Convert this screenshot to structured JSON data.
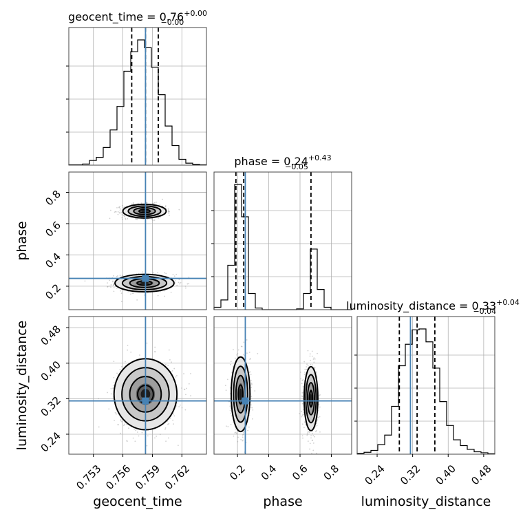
{
  "chart_data": {
    "type": "corner",
    "parameters": [
      {
        "name": "geocent_time",
        "axis_label": "geocent_time",
        "range": [
          0.7505,
          0.7645
        ],
        "ticks": [
          0.753,
          0.756,
          0.759,
          0.762
        ],
        "tick_labels": [
          "0.753",
          "0.756",
          "0.759",
          "0.762"
        ],
        "title_main": "geocent_time = 0.76",
        "title_plus": "+0.00",
        "title_minus": "−0.00",
        "median": 0.7583,
        "quantiles": [
          0.7569,
          0.7583,
          0.7596
        ],
        "truth": 0.7583,
        "hist_edges": [
          0.7505,
          0.7512,
          0.7519,
          0.7526,
          0.7533,
          0.754,
          0.7547,
          0.7554,
          0.7561,
          0.7568,
          0.7575,
          0.7582,
          0.7589,
          0.7596,
          0.7603,
          0.761,
          0.7617,
          0.7624,
          0.7631,
          0.7638,
          0.7645
        ],
        "hist_counts": [
          1,
          1,
          3,
          12,
          20,
          45,
          90,
          150,
          240,
          290,
          320,
          300,
          250,
          180,
          100,
          50,
          15,
          5,
          2,
          1
        ]
      },
      {
        "name": "phase",
        "axis_label": "phase",
        "range": [
          0.05,
          0.93
        ],
        "ticks": [
          0.2,
          0.4,
          0.6,
          0.8
        ],
        "tick_labels": [
          "0.2",
          "0.4",
          "0.6",
          "0.8"
        ],
        "title_main": "phase = 0.24",
        "title_plus": "+0.43",
        "title_minus": "−0.05",
        "median": 0.24,
        "quantiles": [
          0.19,
          0.24,
          0.67
        ],
        "truth": 0.25,
        "hist_edges": [
          0.05,
          0.094,
          0.138,
          0.182,
          0.226,
          0.27,
          0.314,
          0.358,
          0.402,
          0.446,
          0.49,
          0.534,
          0.578,
          0.622,
          0.666,
          0.71,
          0.754,
          0.798,
          0.842,
          0.886,
          0.93
        ],
        "hist_counts": [
          3,
          12,
          55,
          155,
          115,
          20,
          2,
          0,
          0,
          0,
          0,
          0,
          1,
          20,
          75,
          25,
          3,
          0,
          0,
          0
        ]
      },
      {
        "name": "luminosity_distance",
        "axis_label": "luminosity_distance",
        "range": [
          0.195,
          0.505
        ],
        "ticks": [
          0.24,
          0.32,
          0.4,
          0.48
        ],
        "tick_labels": [
          "0.24",
          "0.32",
          "0.40",
          "0.48"
        ],
        "title_main": "luminosity_distance = 0.33",
        "title_plus": "+0.04",
        "title_minus": "−0.04",
        "median": 0.33,
        "quantiles": [
          0.29,
          0.33,
          0.37
        ],
        "truth": 0.315,
        "hist_edges": [
          0.195,
          0.2105,
          0.226,
          0.2415,
          0.257,
          0.2725,
          0.288,
          0.3035,
          0.319,
          0.3345,
          0.35,
          0.3655,
          0.381,
          0.3965,
          0.412,
          0.4275,
          0.443,
          0.4585,
          0.474,
          0.4895,
          0.505
        ],
        "hist_counts": [
          2,
          4,
          8,
          20,
          40,
          100,
          185,
          230,
          260,
          262,
          235,
          180,
          110,
          60,
          30,
          18,
          10,
          5,
          3,
          1
        ]
      }
    ],
    "pairs": [
      {
        "x": "geocent_time",
        "y": "phase",
        "modes": [
          {
            "cx": 0.7582,
            "cy": 0.22,
            "sx": 0.0015,
            "sy": 0.028
          },
          {
            "cx": 0.7582,
            "cy": 0.68,
            "sx": 0.0011,
            "sy": 0.022
          }
        ],
        "truth": [
          0.7583,
          0.25
        ]
      },
      {
        "x": "geocent_time",
        "y": "luminosity_distance",
        "modes": [
          {
            "cx": 0.7583,
            "cy": 0.33,
            "sx": 0.0016,
            "sy": 0.04
          }
        ],
        "truth": [
          0.7583,
          0.315
        ]
      },
      {
        "x": "phase",
        "y": "luminosity_distance",
        "modes": [
          {
            "cx": 0.22,
            "cy": 0.33,
            "sx": 0.03,
            "sy": 0.042
          },
          {
            "cx": 0.67,
            "cy": 0.32,
            "sx": 0.022,
            "sy": 0.036
          }
        ],
        "truth": [
          0.25,
          0.315
        ]
      }
    ],
    "grid": true,
    "truth_color": "#4682b4"
  }
}
